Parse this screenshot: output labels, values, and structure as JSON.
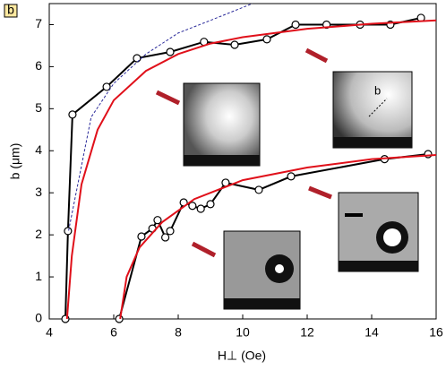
{
  "chart_data": {
    "type": "line",
    "panel_label": "b",
    "xlabel": "H⊥ (Oe)",
    "ylabel": "b (μm)",
    "xlim": [
      4,
      16
    ],
    "ylim": [
      0,
      7.5
    ],
    "xticks": [
      4,
      6,
      8,
      10,
      12,
      14,
      16
    ],
    "yticks": [
      0,
      1,
      2,
      3,
      4,
      5,
      6,
      7
    ],
    "series": [
      {
        "color": "#000000",
        "markers": true,
        "dashed": false,
        "x": [
          4.5,
          4.58,
          4.72,
          5.78,
          6.72,
          7.75,
          8.8,
          9.75,
          10.75,
          11.64,
          12.6,
          13.64,
          14.58,
          15.53
        ],
        "values": [
          0,
          2.09,
          4.86,
          5.52,
          6.2,
          6.35,
          6.59,
          6.52,
          6.65,
          7.0,
          7.0,
          7.0,
          7.0,
          7.16
        ]
      },
      {
        "color": "#000000",
        "markers": true,
        "dashed": false,
        "x": [
          6.17,
          6.86,
          7.2,
          7.36,
          7.6,
          7.75,
          8.17,
          8.44,
          8.7,
          9.0,
          9.47,
          10.5,
          11.5,
          14.4,
          15.75
        ],
        "values": [
          0,
          1.96,
          2.15,
          2.35,
          1.94,
          2.09,
          2.77,
          2.69,
          2.62,
          2.73,
          3.24,
          3.07,
          3.39,
          3.8,
          3.92
        ]
      },
      {
        "color": "#e0101a",
        "markers": false,
        "dashed": false,
        "x": [
          4.55,
          4.7,
          5,
          5.5,
          6,
          7,
          8,
          9,
          10,
          12,
          14,
          16
        ],
        "values": [
          0,
          1.5,
          3.2,
          4.5,
          5.2,
          5.9,
          6.3,
          6.55,
          6.7,
          6.9,
          7.02,
          7.1
        ]
      },
      {
        "color": "#e0101a",
        "markers": false,
        "dashed": false,
        "x": [
          6.2,
          6.4,
          6.8,
          7.5,
          8.5,
          10,
          12,
          14,
          16
        ],
        "values": [
          0,
          1.0,
          1.7,
          2.3,
          2.85,
          3.3,
          3.6,
          3.8,
          3.9
        ]
      },
      {
        "color": "#2a2a9a",
        "markers": false,
        "dashed": true,
        "x": [
          4.6,
          5.3,
          6,
          7,
          8,
          9,
          10.3
        ],
        "values": [
          2.1,
          4.8,
          5.6,
          6.3,
          6.8,
          7.1,
          7.5
        ]
      }
    ]
  }
}
